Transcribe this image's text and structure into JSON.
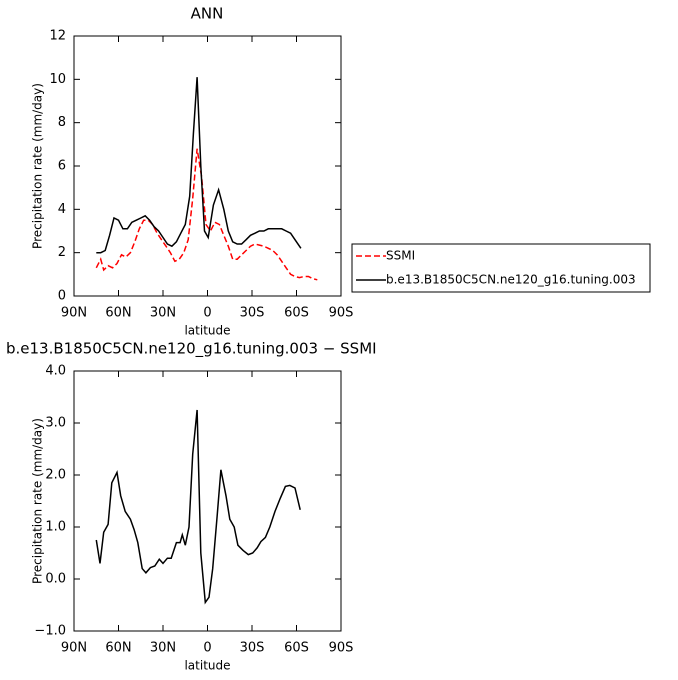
{
  "chart_data": [
    {
      "type": "line",
      "title": "ANN",
      "xlabel": "latitude",
      "ylabel": "Precipitation rate  (mm/day)",
      "xlim": [
        90,
        -90
      ],
      "xticks": [
        {
          "value": 90,
          "label": "90N"
        },
        {
          "value": 60,
          "label": "60N"
        },
        {
          "value": 30,
          "label": "30N"
        },
        0,
        {
          "value": -30,
          "label": "30S"
        },
        {
          "value": -60,
          "label": "60S"
        },
        {
          "value": -90,
          "label": "90S"
        }
      ],
      "ylim": [
        0,
        12
      ],
      "yticks": [
        0,
        2,
        4,
        6,
        8,
        10,
        12
      ],
      "legend": "right",
      "series": [
        {
          "name": "SSMI",
          "color": "#ff0000",
          "linestyle": "dashed",
          "x": [
            75,
            72,
            70,
            67,
            64,
            61,
            58,
            55,
            52,
            49,
            46,
            43,
            40,
            37,
            34,
            31,
            28,
            25,
            22,
            19,
            16,
            13,
            10,
            7,
            4,
            1,
            -2,
            -5,
            -8,
            -11,
            -14,
            -17,
            -20,
            -23,
            -26,
            -29,
            -32,
            -35,
            -38,
            -41,
            -44,
            -47,
            -50,
            -53,
            -56,
            -59,
            -62,
            -65,
            -68,
            -71,
            -74
          ],
          "values": [
            1.3,
            1.7,
            1.2,
            1.4,
            1.3,
            1.5,
            1.9,
            1.8,
            2.0,
            2.5,
            3.1,
            3.5,
            3.5,
            3.3,
            2.9,
            2.6,
            2.3,
            2.0,
            1.6,
            1.7,
            2.0,
            2.6,
            4.5,
            6.8,
            5.5,
            3.3,
            3.0,
            3.4,
            3.3,
            2.8,
            2.3,
            1.7,
            1.7,
            1.9,
            2.1,
            2.3,
            2.4,
            2.35,
            2.3,
            2.2,
            2.1,
            1.9,
            1.6,
            1.3,
            1.0,
            0.9,
            0.85,
            0.9,
            0.9,
            0.8,
            0.75
          ]
        },
        {
          "name": "b.e13.B1850C5CN.ne120_g16.tuning.003",
          "color": "#000000",
          "linestyle": "solid",
          "x": [
            75,
            72,
            69,
            66,
            63,
            60,
            57,
            54,
            51,
            48,
            45,
            42,
            39,
            36,
            33,
            30,
            27,
            24,
            21,
            18,
            15,
            12,
            9.5,
            7,
            4.5,
            2,
            -0.5,
            -4,
            -7.5,
            -11,
            -14,
            -17,
            -20,
            -23,
            -26,
            -29,
            -32,
            -35,
            -38,
            -41,
            -44,
            -47,
            -50,
            -53,
            -56,
            -59,
            -63
          ],
          "values": [
            2.0,
            2.0,
            2.1,
            2.8,
            3.6,
            3.5,
            3.1,
            3.1,
            3.4,
            3.5,
            3.6,
            3.7,
            3.5,
            3.2,
            3.0,
            2.7,
            2.4,
            2.3,
            2.5,
            2.9,
            3.3,
            4.6,
            7.5,
            10.1,
            6.0,
            3.0,
            2.7,
            4.2,
            4.9,
            4.0,
            3.0,
            2.5,
            2.4,
            2.4,
            2.6,
            2.8,
            2.9,
            3.0,
            3.0,
            3.1,
            3.1,
            3.1,
            3.1,
            3.0,
            2.9,
            2.6,
            2.2
          ]
        }
      ]
    },
    {
      "type": "line",
      "title": "b.e13.B1850C5CN.ne120_g16.tuning.003 − SSMI",
      "xlabel": "latitude",
      "ylabel": "Precipitation rate  (mm/day)",
      "xlim": [
        90,
        -90
      ],
      "xticks": [
        {
          "value": 90,
          "label": "90N"
        },
        {
          "value": 60,
          "label": "60N"
        },
        {
          "value": 30,
          "label": "30N"
        },
        0,
        {
          "value": -30,
          "label": "30S"
        },
        {
          "value": -60,
          "label": "60S"
        },
        {
          "value": -90,
          "label": "90S"
        }
      ],
      "ylim": [
        -1,
        4
      ],
      "yticks": [
        {
          "value": -1,
          "label": "−1.0"
        },
        {
          "value": 0,
          "label": "0.0"
        },
        {
          "value": 1,
          "label": "1.0"
        },
        {
          "value": 2,
          "label": "2.0"
        },
        {
          "value": 3,
          "label": "3.0"
        },
        {
          "value": 4,
          "label": "4.0"
        }
      ],
      "series": [
        {
          "color": "#000000",
          "linestyle": "solid",
          "x": [
            75,
            72.5,
            70,
            67,
            64.5,
            61,
            58.5,
            55.5,
            52,
            49.5,
            47,
            44,
            41.5,
            38.5,
            35.5,
            32.5,
            30,
            27,
            24.5,
            21,
            18.5,
            17,
            15,
            12.5,
            10,
            7,
            4.5,
            1.5,
            -1,
            -3.5,
            -6.5,
            -9,
            -12.5,
            -15,
            -18,
            -20.5,
            -24,
            -27.5,
            -30.5,
            -33.5,
            -36,
            -39,
            -42,
            -45.5,
            -49,
            -52.5,
            -55.5,
            -59,
            -62.5
          ],
          "values": [
            0.75,
            0.3,
            0.9,
            1.05,
            1.85,
            2.05,
            1.6,
            1.3,
            1.15,
            0.95,
            0.7,
            0.2,
            0.12,
            0.22,
            0.25,
            0.38,
            0.3,
            0.4,
            0.4,
            0.7,
            0.7,
            0.85,
            0.65,
            1.0,
            2.4,
            3.25,
            0.5,
            -0.45,
            -0.35,
            0.2,
            1.2,
            2.1,
            1.6,
            1.15,
            1.0,
            0.65,
            0.55,
            0.47,
            0.5,
            0.6,
            0.72,
            0.8,
            1.0,
            1.3,
            1.55,
            1.78,
            1.8,
            1.75,
            1.33
          ]
        }
      ]
    }
  ]
}
